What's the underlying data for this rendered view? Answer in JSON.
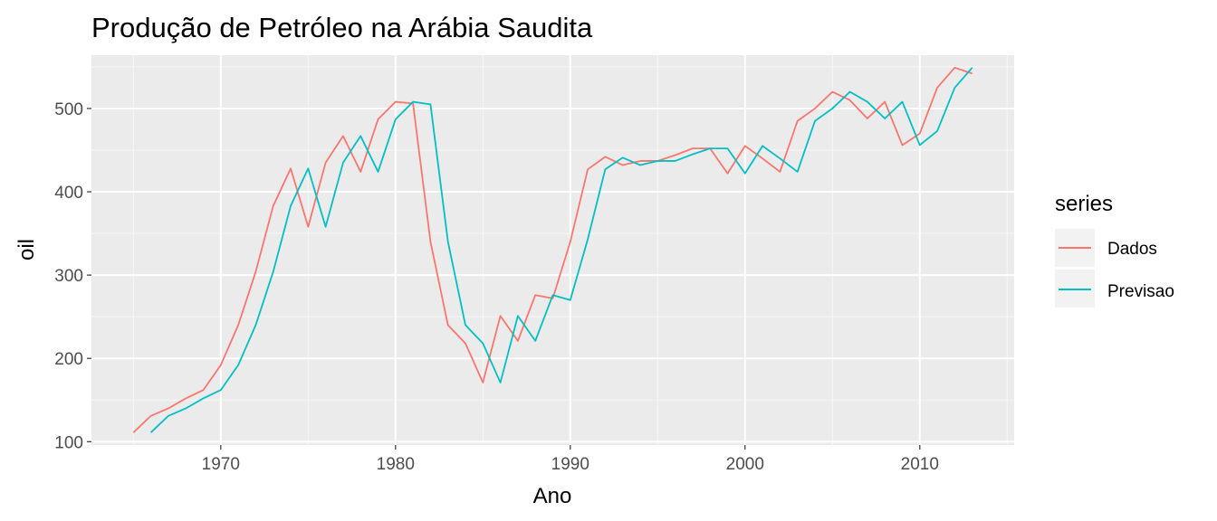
{
  "chart_data": {
    "type": "line",
    "title": "Produção de Petróleo na Arábia Saudita",
    "xlabel": "Ano",
    "ylabel": "oil",
    "xlim": [
      1962.6,
      2015.4
    ],
    "ylim": [
      96,
      564
    ],
    "x_ticks": [
      1970,
      1980,
      1990,
      2000,
      2010
    ],
    "y_ticks": [
      100,
      200,
      300,
      400,
      500
    ],
    "x_tick_labels": [
      "1970",
      "1980",
      "1990",
      "2000",
      "2010"
    ],
    "y_tick_labels": [
      "100",
      "200",
      "300",
      "400",
      "500"
    ],
    "grid": true,
    "legend": {
      "title": "series",
      "position": "right"
    },
    "series": [
      {
        "name": "Dados",
        "color": "#F8766D",
        "x": [
          1965,
          1966,
          1967,
          1968,
          1969,
          1970,
          1971,
          1972,
          1973,
          1974,
          1975,
          1976,
          1977,
          1978,
          1979,
          1980,
          1981,
          1982,
          1983,
          1984,
          1985,
          1986,
          1987,
          1988,
          1989,
          1990,
          1991,
          1992,
          1993,
          1994,
          1995,
          1996,
          1997,
          1998,
          1999,
          2000,
          2001,
          2002,
          2003,
          2004,
          2005,
          2006,
          2007,
          2008,
          2009,
          2010,
          2011,
          2012,
          2013
        ],
        "y": [
          111,
          131,
          140,
          152,
          162,
          192,
          240,
          304,
          383,
          428,
          358,
          435,
          467,
          424,
          487,
          508,
          506,
          340,
          240,
          218,
          171,
          251,
          221,
          276,
          272,
          340,
          427,
          442,
          432,
          437,
          437,
          444,
          452,
          452,
          422,
          455,
          440,
          424,
          485,
          500,
          520,
          510,
          488,
          508,
          456,
          470,
          525,
          549,
          542
        ]
      },
      {
        "name": "Previsao",
        "color": "#00BFC4",
        "x": [
          1966,
          1967,
          1968,
          1969,
          1970,
          1971,
          1972,
          1973,
          1974,
          1975,
          1976,
          1977,
          1978,
          1979,
          1980,
          1981,
          1982,
          1983,
          1984,
          1985,
          1986,
          1987,
          1988,
          1989,
          1990,
          1991,
          1992,
          1993,
          1994,
          1995,
          1996,
          1997,
          1998,
          1999,
          2000,
          2001,
          2002,
          2003,
          2004,
          2005,
          2006,
          2007,
          2008,
          2009,
          2010,
          2011,
          2012,
          2013
        ],
        "y": [
          111,
          131,
          140,
          152,
          162,
          192,
          240,
          304,
          383,
          428,
          358,
          435,
          467,
          424,
          487,
          508,
          505,
          340,
          240,
          218,
          171,
          251,
          221,
          276,
          270,
          343,
          427,
          441,
          432,
          437,
          437,
          445,
          452,
          452,
          422,
          455,
          440,
          424,
          485,
          500,
          520,
          508,
          488,
          508,
          456,
          473,
          525,
          549
        ]
      }
    ]
  }
}
